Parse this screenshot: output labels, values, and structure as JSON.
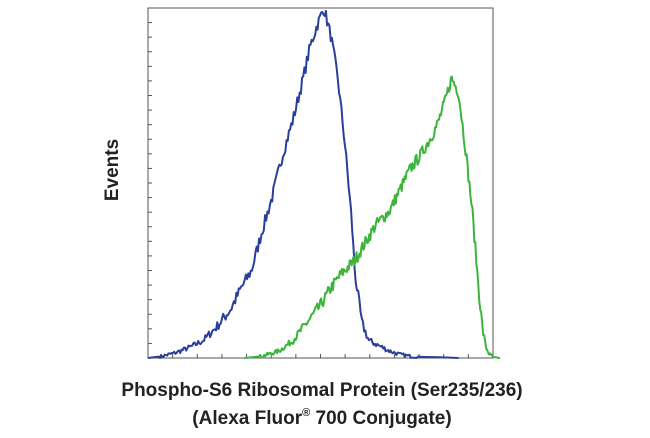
{
  "chart_data": {
    "type": "line",
    "title": "",
    "ylabel": "Events",
    "xlabel_line1": "Phospho-S6 Ribosomal Protein (Ser235/236)",
    "xlabel_line2_prefix": "(Alexa Fluor",
    "xlabel_line2_sup": "®",
    "xlabel_line2_suffix": " 700 Conjugate)",
    "xlim": [
      0,
      1
    ],
    "ylim": [
      0,
      1
    ],
    "grid": false,
    "x_minor_ticks": 14,
    "y_minor_ticks": 24,
    "series": [
      {
        "color": "#2a3f9a",
        "x": [
          0.0,
          0.04,
          0.08,
          0.12,
          0.16,
          0.2,
          0.24,
          0.27,
          0.3,
          0.33,
          0.36,
          0.39,
          0.42,
          0.45,
          0.47,
          0.49,
          0.51,
          0.53,
          0.55,
          0.57,
          0.59,
          0.6,
          0.62,
          0.64,
          0.66,
          0.68,
          0.7,
          0.73,
          0.76,
          0.8,
          0.85,
          0.9
        ],
        "y": [
          0.0,
          0.005,
          0.015,
          0.03,
          0.05,
          0.09,
          0.14,
          0.2,
          0.25,
          0.36,
          0.46,
          0.58,
          0.68,
          0.8,
          0.89,
          0.95,
          1.0,
          0.92,
          0.8,
          0.62,
          0.4,
          0.24,
          0.1,
          0.05,
          0.04,
          0.03,
          0.02,
          0.01,
          0.005,
          0.003,
          0.002,
          0.0
        ]
      },
      {
        "color": "#3cb43c",
        "x": [
          0.28,
          0.33,
          0.38,
          0.42,
          0.46,
          0.5,
          0.53,
          0.56,
          0.6,
          0.63,
          0.66,
          0.7,
          0.73,
          0.76,
          0.79,
          0.82,
          0.84,
          0.86,
          0.88,
          0.9,
          0.92,
          0.94,
          0.95,
          0.96,
          0.97,
          0.98,
          0.99,
          1.0,
          1.02
        ],
        "y": [
          0.0,
          0.005,
          0.02,
          0.05,
          0.1,
          0.15,
          0.2,
          0.24,
          0.28,
          0.33,
          0.38,
          0.42,
          0.48,
          0.54,
          0.58,
          0.63,
          0.67,
          0.73,
          0.8,
          0.76,
          0.6,
          0.42,
          0.3,
          0.18,
          0.08,
          0.03,
          0.01,
          0.003,
          0.0
        ]
      }
    ]
  }
}
